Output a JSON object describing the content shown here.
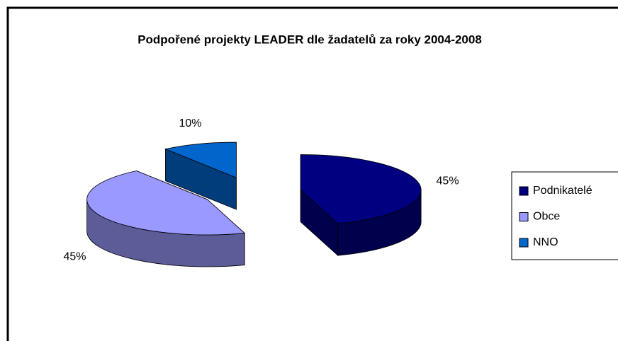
{
  "chart_data": {
    "type": "pie3d",
    "title": "Podpořené projekty LEADER dle žadatelů za roky 2004-2008",
    "categories": [
      "Podnikatelé",
      "Obce",
      "NNO"
    ],
    "values": [
      45,
      45,
      10
    ],
    "value_labels": [
      "45%",
      "45%",
      "10%"
    ],
    "colors": [
      "#000080",
      "#9999ff",
      "#0066cc"
    ],
    "legend": "right"
  }
}
